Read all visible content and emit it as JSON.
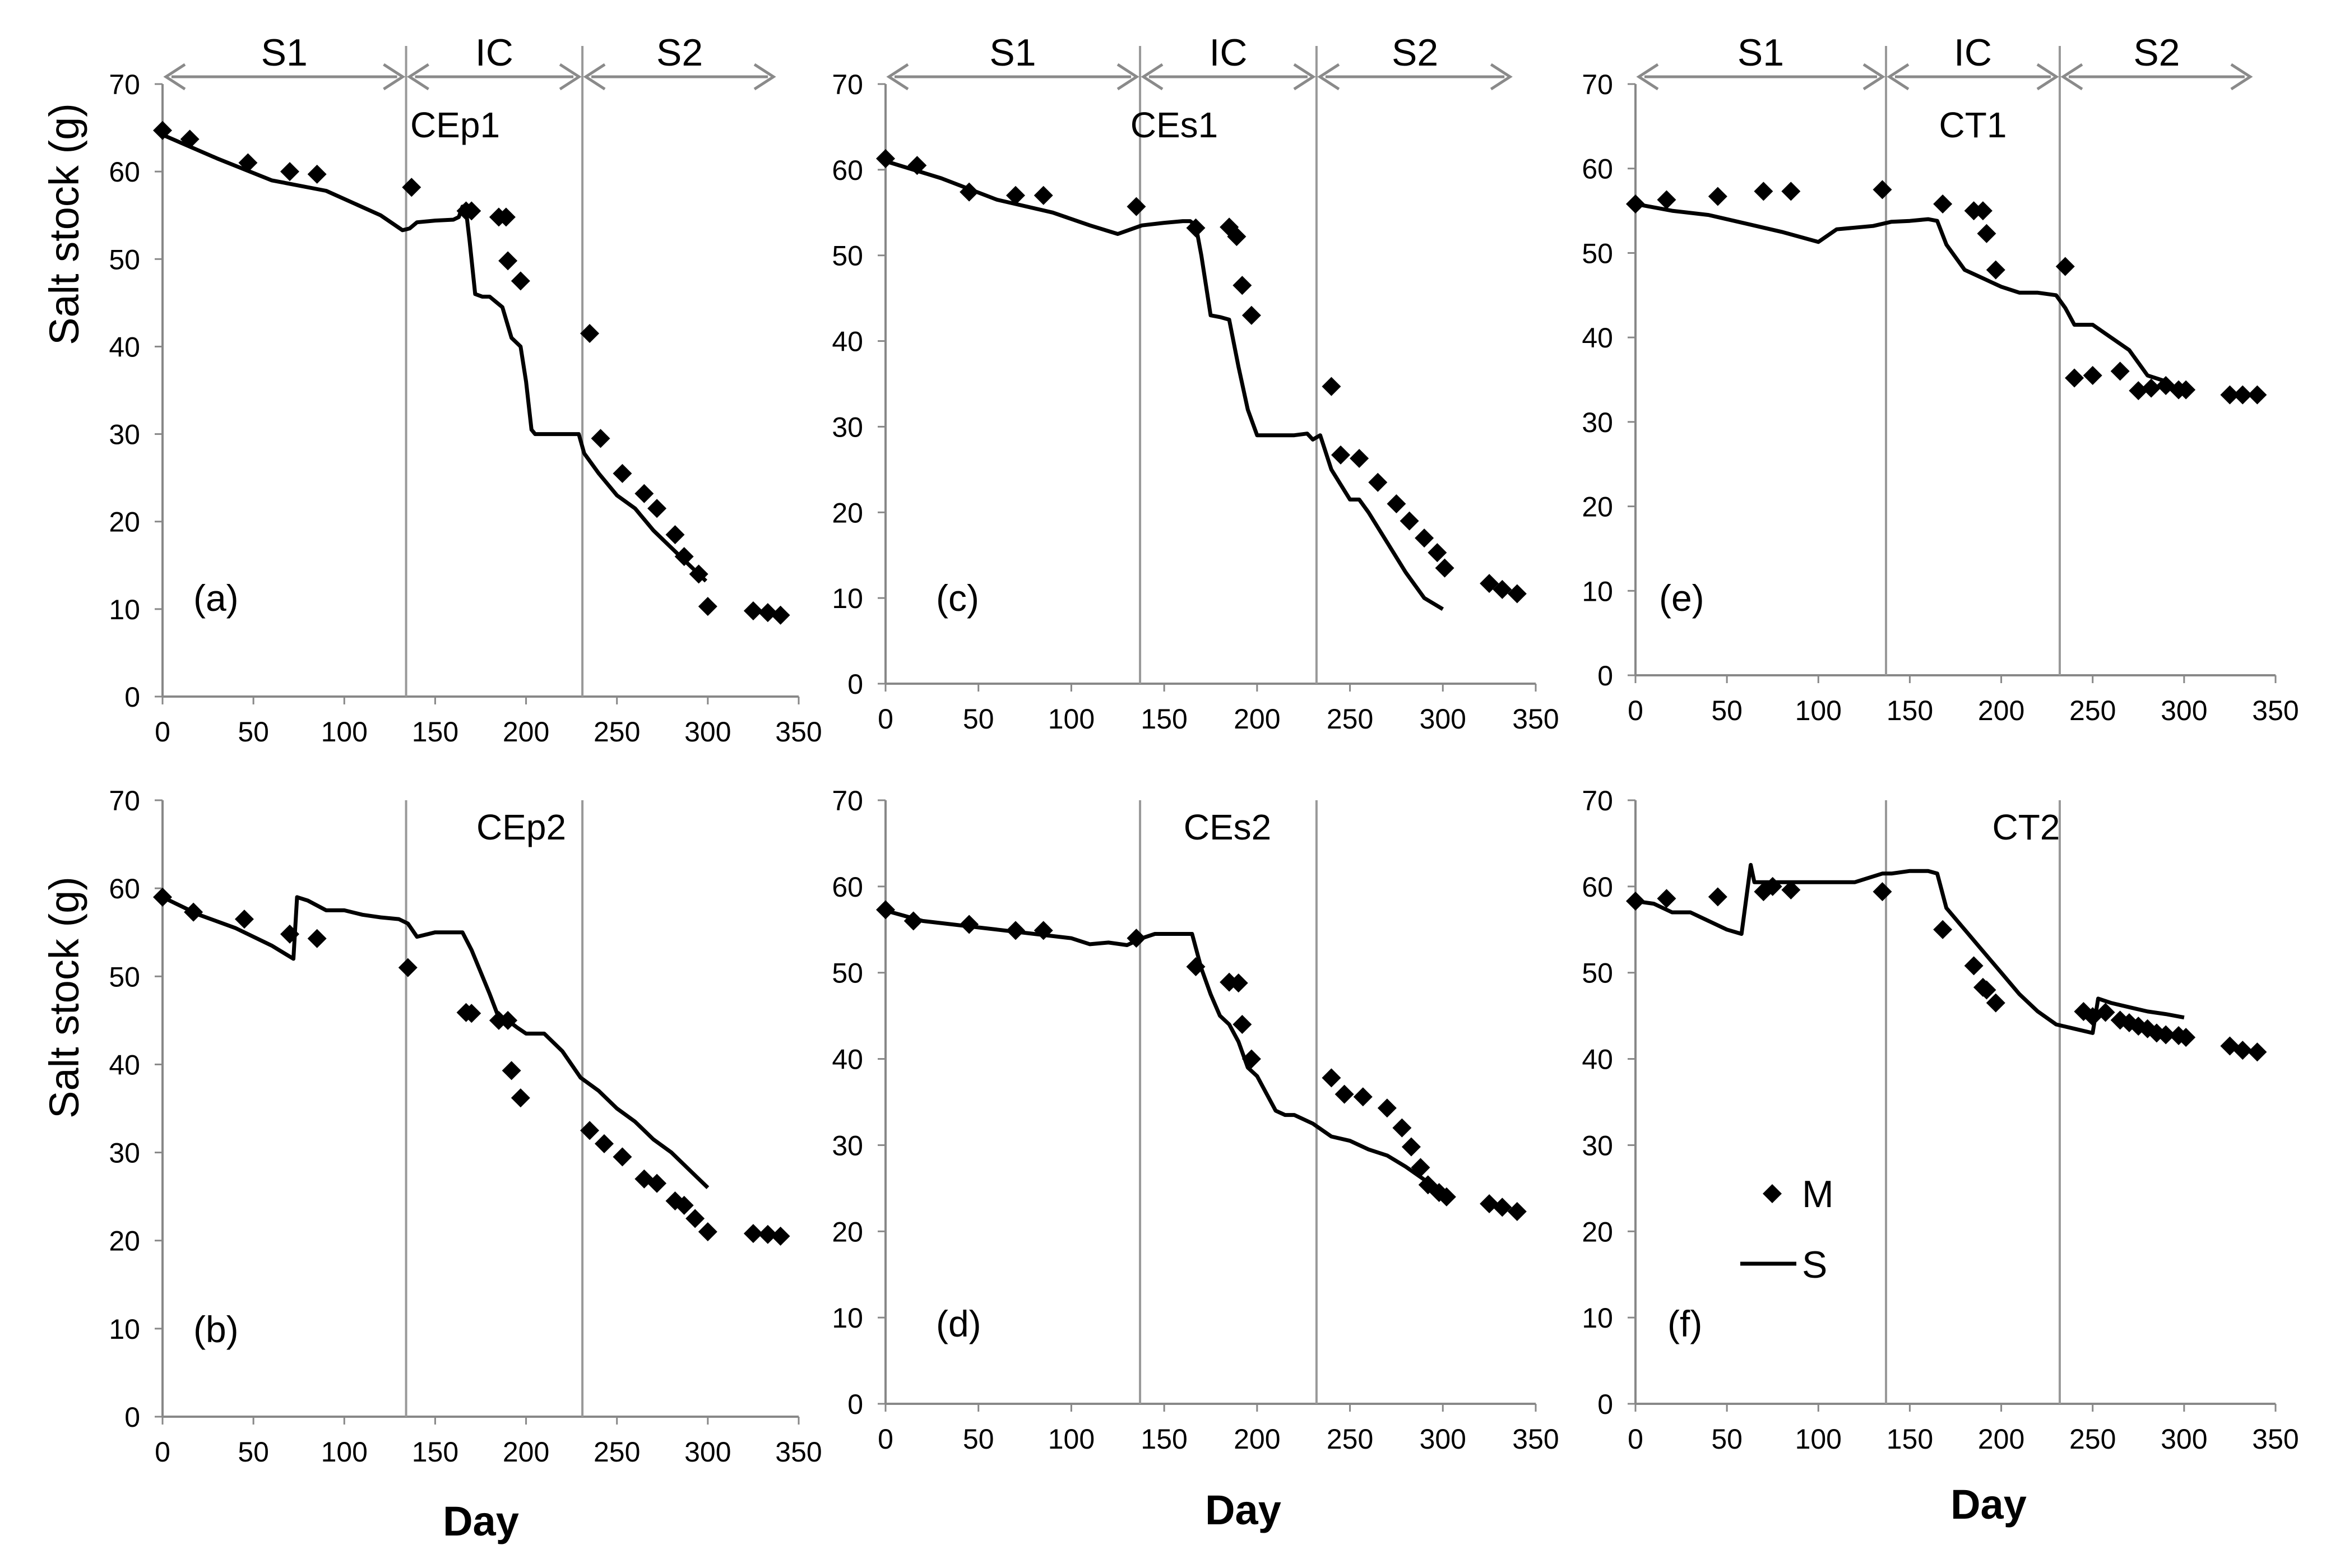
{
  "figure": {
    "ylabel": "Salt stock (g)",
    "xlabel": "Day",
    "legend": {
      "measured_label": "M",
      "simulated_label": "S"
    },
    "axis": {
      "xlim": [
        0,
        350
      ],
      "ylim": [
        0,
        70
      ],
      "xticks": [
        "0",
        "50",
        "100",
        "150",
        "200",
        "250",
        "300",
        "350"
      ],
      "yticks": [
        "0",
        "10",
        "20",
        "30",
        "40",
        "50",
        "60",
        "70"
      ]
    },
    "phases": [
      {
        "label": "S1",
        "start": 0,
        "end": 133
      },
      {
        "label": "IC",
        "start": 133,
        "end": 230
      },
      {
        "label": "S2",
        "start": 230,
        "end": 338
      }
    ]
  },
  "chart_data": [
    {
      "type": "line",
      "title": "CEp1",
      "panel_label": "(a)",
      "xlabel": "Day",
      "ylabel": "Salt stock (g)",
      "xlim": [
        0,
        350
      ],
      "ylim": [
        0,
        70
      ],
      "phase_boundaries": [
        134,
        231
      ],
      "series": [
        {
          "name": "M",
          "kind": "scatter",
          "x": [
            0,
            15,
            47,
            70,
            85,
            137,
            167,
            170,
            185,
            189,
            190,
            197,
            235,
            241,
            253,
            265,
            272,
            282,
            287,
            295,
            300,
            325,
            333,
            340
          ],
          "y": [
            64.7,
            63.7,
            61,
            60,
            59.7,
            58.2,
            55.5,
            55.5,
            54.8,
            54.8,
            49.8,
            47.5,
            41.5,
            29.5,
            25.5,
            23.2,
            21.5,
            18.5,
            16,
            14,
            10.3,
            9.8,
            9.6,
            9.3
          ]
        },
        {
          "name": "S",
          "kind": "line",
          "x": [
            0,
            30,
            60,
            90,
            120,
            132,
            136,
            140,
            150,
            160,
            163,
            165,
            167,
            169,
            172,
            176,
            180,
            187,
            192,
            197,
            200,
            203,
            205,
            210,
            220,
            229,
            232,
            240,
            250,
            260,
            270,
            280,
            290,
            299
          ],
          "y": [
            64.2,
            61.5,
            59,
            57.8,
            55,
            53.3,
            53.5,
            54.2,
            54.4,
            54.5,
            54.8,
            56,
            55.5,
            52,
            46,
            45.7,
            45.7,
            44.5,
            41,
            40,
            36,
            30.5,
            30,
            30,
            30,
            30,
            27.8,
            25.5,
            23,
            21.5,
            19,
            17,
            15,
            13.2
          ]
        }
      ]
    },
    {
      "type": "line",
      "title": "CEs1",
      "panel_label": "(c)",
      "xlabel": "Day",
      "ylabel": "Salt stock (g)",
      "xlim": [
        0,
        350
      ],
      "ylim": [
        0,
        70
      ],
      "phase_boundaries": [
        137,
        232
      ],
      "series": [
        {
          "name": "M",
          "kind": "scatter",
          "x": [
            0,
            17,
            45,
            70,
            85,
            135,
            167,
            185,
            189,
            192,
            197,
            240,
            245,
            255,
            265,
            275,
            282,
            290,
            297,
            301,
            325,
            332,
            340
          ],
          "y": [
            61.3,
            60.5,
            57.4,
            57,
            57,
            55.7,
            53.2,
            53.3,
            52.2,
            46.5,
            43,
            34.7,
            26.7,
            26.3,
            23.5,
            21,
            19,
            17,
            15.3,
            13.5,
            11.7,
            11,
            10.5
          ]
        },
        {
          "name": "S",
          "kind": "line",
          "x": [
            0,
            30,
            60,
            90,
            110,
            125,
            138,
            150,
            160,
            164,
            167,
            170,
            175,
            180,
            185,
            190,
            195,
            200,
            210,
            220,
            227,
            230,
            234,
            240,
            250,
            255,
            260,
            270,
            280,
            290,
            300
          ],
          "y": [
            61,
            59,
            56.5,
            55,
            53.5,
            52.5,
            53.5,
            53.8,
            54,
            54,
            53.5,
            50,
            43,
            42.8,
            42.5,
            37,
            32,
            29,
            29,
            29,
            29.2,
            28.5,
            29,
            25,
            21.5,
            21.5,
            20,
            16.5,
            13,
            10,
            8.7
          ]
        }
      ]
    },
    {
      "type": "line",
      "title": "CT1",
      "panel_label": "(e)",
      "xlabel": "Day",
      "ylabel": "Salt stock (g)",
      "xlim": [
        0,
        350
      ],
      "ylim": [
        0,
        70
      ],
      "phase_boundaries": [
        137,
        232
      ],
      "series": [
        {
          "name": "M",
          "kind": "scatter",
          "x": [
            0,
            17,
            45,
            70,
            85,
            135,
            168,
            185,
            190,
            192,
            197,
            235,
            240,
            250,
            265,
            275,
            282,
            290,
            297,
            301,
            325,
            332,
            340
          ],
          "y": [
            55.8,
            56.3,
            56.7,
            57.3,
            57.3,
            57.5,
            55.8,
            55,
            55,
            52.3,
            48,
            48.4,
            35.2,
            35.5,
            36,
            33.7,
            34,
            34.3,
            33.8,
            33.8,
            33.2,
            33.2,
            33.2
          ]
        },
        {
          "name": "S",
          "kind": "line",
          "x": [
            0,
            20,
            40,
            60,
            80,
            100,
            110,
            120,
            130,
            140,
            150,
            160,
            165,
            170,
            180,
            190,
            200,
            210,
            220,
            230,
            235,
            240,
            250,
            260,
            270,
            280,
            290
          ],
          "y": [
            55.8,
            55,
            54.5,
            53.5,
            52.5,
            51.3,
            52.8,
            53,
            53.2,
            53.7,
            53.8,
            54,
            53.8,
            51,
            48,
            47,
            46,
            45.3,
            45.3,
            45,
            43.5,
            41.5,
            41.5,
            40,
            38.5,
            35.5,
            34.8
          ]
        }
      ]
    },
    {
      "type": "line",
      "title": "CEp2",
      "panel_label": "(b)",
      "xlabel": "Day",
      "ylabel": "Salt stock (g)",
      "xlim": [
        0,
        350
      ],
      "ylim": [
        0,
        70
      ],
      "phase_boundaries": [
        134,
        231
      ],
      "series": [
        {
          "name": "M",
          "kind": "scatter",
          "x": [
            0,
            17,
            45,
            70,
            85,
            135,
            167,
            170,
            185,
            190,
            192,
            197,
            235,
            243,
            253,
            265,
            272,
            282,
            287,
            293,
            300,
            325,
            333,
            340
          ],
          "y": [
            59,
            57.3,
            56.5,
            54.8,
            54.3,
            51,
            45.9,
            45.8,
            45,
            45,
            39.3,
            36.2,
            32.5,
            31,
            29.5,
            27,
            26.5,
            24.5,
            24,
            22.5,
            21,
            20.8,
            20.7,
            20.5
          ]
        },
        {
          "name": "S",
          "kind": "line",
          "x": [
            0,
            20,
            40,
            60,
            72,
            74,
            80,
            90,
            100,
            110,
            120,
            130,
            135,
            140,
            150,
            160,
            165,
            170,
            180,
            185,
            190,
            195,
            200,
            205,
            210,
            215,
            220,
            225,
            230,
            240,
            250,
            260,
            270,
            280,
            290,
            300
          ],
          "y": [
            59,
            57,
            55.5,
            53.5,
            52,
            59,
            58.6,
            57.5,
            57.5,
            57,
            56.7,
            56.5,
            56,
            54.5,
            55,
            55,
            55,
            53,
            48,
            45.3,
            45,
            44.2,
            43.5,
            43.5,
            43.5,
            42.5,
            41.5,
            40,
            38.5,
            37,
            35,
            33.5,
            31.5,
            30,
            28,
            26
          ]
        }
      ]
    },
    {
      "type": "line",
      "title": "CEs2",
      "panel_label": "(d)",
      "xlabel": "Day",
      "ylabel": "Salt stock (g)",
      "xlim": [
        0,
        350
      ],
      "ylim": [
        0,
        70
      ],
      "phase_boundaries": [
        137,
        232
      ],
      "series": [
        {
          "name": "M",
          "kind": "scatter",
          "x": [
            0,
            15,
            45,
            70,
            85,
            135,
            167,
            185,
            190,
            192,
            197,
            240,
            247,
            257,
            270,
            278,
            283,
            288,
            292,
            298,
            302,
            325,
            332,
            340
          ],
          "y": [
            57.3,
            56,
            55.6,
            54.9,
            54.9,
            54,
            50.7,
            48.9,
            48.8,
            44,
            40,
            37.8,
            35.9,
            35.6,
            34.3,
            32,
            29.8,
            27.4,
            25.4,
            24.5,
            24,
            23.2,
            22.8,
            22.3
          ]
        },
        {
          "name": "S",
          "kind": "line",
          "x": [
            0,
            20,
            40,
            60,
            80,
            100,
            110,
            120,
            130,
            138,
            145,
            155,
            165,
            170,
            175,
            180,
            185,
            190,
            195,
            200,
            210,
            215,
            220,
            230,
            240,
            250,
            260,
            270,
            280,
            290,
            300
          ],
          "y": [
            57.2,
            56,
            55.5,
            55,
            54.5,
            54,
            53.3,
            53.5,
            53.2,
            54,
            54.5,
            54.5,
            54.5,
            50.5,
            47.5,
            45,
            44,
            42,
            39,
            38,
            34,
            33.5,
            33.5,
            32.5,
            31,
            30.5,
            29.5,
            28.8,
            27.5,
            26,
            24.5
          ]
        }
      ]
    },
    {
      "type": "line",
      "title": "CT2",
      "panel_label": "(f)",
      "xlabel": "Day",
      "ylabel": "Salt stock (g)",
      "xlim": [
        0,
        350
      ],
      "ylim": [
        0,
        70
      ],
      "phase_boundaries": [
        137,
        232
      ],
      "series": [
        {
          "name": "M",
          "kind": "scatter",
          "x": [
            0,
            17,
            45,
            70,
            75,
            85,
            135,
            168,
            185,
            190,
            192,
            197,
            245,
            250,
            257,
            265,
            270,
            275,
            280,
            285,
            290,
            297,
            301,
            325,
            332,
            340
          ],
          "y": [
            58.3,
            58.6,
            58.8,
            59.4,
            60,
            59.6,
            59.4,
            55,
            50.8,
            48.3,
            48,
            46.5,
            45.5,
            44.9,
            45.4,
            44.5,
            44.2,
            43.8,
            43.5,
            43,
            42.8,
            42.7,
            42.5,
            41.5,
            41,
            40.8
          ]
        },
        {
          "name": "S",
          "kind": "line",
          "x": [
            0,
            10,
            20,
            30,
            40,
            50,
            58,
            63,
            65,
            68,
            80,
            100,
            120,
            135,
            140,
            150,
            160,
            165,
            170,
            180,
            190,
            200,
            210,
            220,
            230,
            240,
            250,
            253,
            260,
            270,
            280,
            290,
            300
          ],
          "y": [
            58.3,
            58,
            57,
            57,
            56,
            55,
            54.5,
            62.5,
            60.5,
            60.5,
            60.5,
            60.5,
            60.5,
            61.5,
            61.5,
            61.8,
            61.8,
            61.5,
            57.5,
            55,
            52.5,
            50,
            47.5,
            45.5,
            44,
            43.5,
            43,
            47,
            46.5,
            46,
            45.5,
            45.2,
            44.8
          ]
        }
      ]
    }
  ]
}
